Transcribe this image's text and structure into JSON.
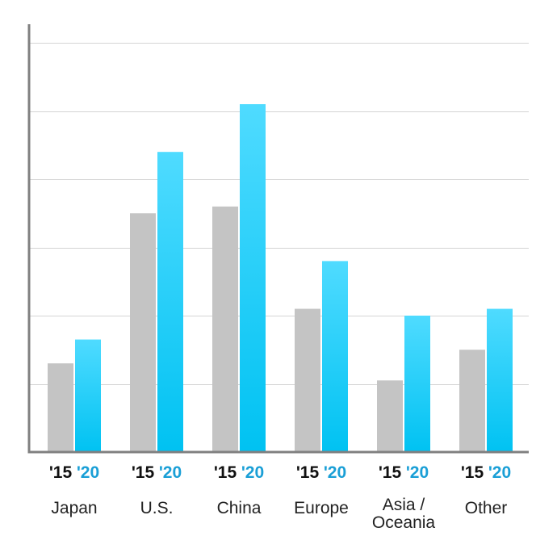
{
  "chart_data": {
    "type": "bar",
    "categories": [
      [
        "Japan"
      ],
      [
        "U.S."
      ],
      [
        "China"
      ],
      [
        "Europe"
      ],
      [
        "Asia /",
        "Oceania"
      ],
      [
        "Other"
      ]
    ],
    "series": [
      {
        "label": "'15",
        "values": [
          1.3,
          3.5,
          3.6,
          2.1,
          1.05,
          1.5
        ]
      },
      {
        "label": "'20",
        "values": [
          1.65,
          4.4,
          5.1,
          2.8,
          2.0,
          2.1
        ]
      }
    ],
    "ylim": [
      0,
      6
    ],
    "grid": true,
    "xlabel": "",
    "ylabel": ""
  },
  "colors": {
    "series_15": "#c4c4c4",
    "series_20_top": "#4fdbff",
    "series_20_bottom": "#00c2f2",
    "label_15": "#111111",
    "label_20": "#1a9fd6",
    "gridline": "#d4d4d4",
    "axis": "#808080"
  }
}
